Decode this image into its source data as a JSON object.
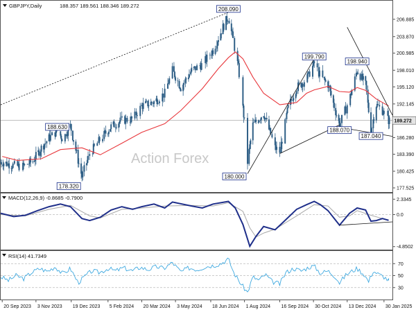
{
  "header": {
    "instrument": "GBPJPY,Daily",
    "ohlc": "188.357 189.561 188.346 189.272"
  },
  "watermark": "Action Forex",
  "colors": {
    "candle": "#2f5f86",
    "ma": "#e8373c",
    "macd_line": "#1f2f8a",
    "macd_signal": "#a8a8a8",
    "rsi_line": "#3fa9e0",
    "trendline": "#111111",
    "annotation_border": "#1a2f8a",
    "current_price_bg": "#e4e4e4",
    "grid": "#bbbbbb"
  },
  "chart_data": [
    {
      "type": "candlestick",
      "name": "price",
      "overlay": "moving average (red)",
      "y_ticks": [
        "206.885",
        "203.870",
        "200.985",
        "198.010",
        "195.120",
        "192.145",
        "189.272",
        "186.280",
        "183.390",
        "180.425",
        "177.525"
      ],
      "ylim": [
        176.8,
        210.0
      ],
      "current_price": "189.272",
      "annotations": [
        {
          "label": "208.090",
          "date": "2024-07-11",
          "value": 208.09
        },
        {
          "label": "199.790",
          "date": "2024-10-31",
          "value": 199.79
        },
        {
          "label": "198.940",
          "date": "2024-12-26",
          "value": 198.94
        },
        {
          "label": "188.630",
          "date": "2023-12-18",
          "value": 188.63
        },
        {
          "label": "188.070",
          "date": "2024-12-03",
          "value": 188.07
        },
        {
          "label": "187.040",
          "date": "2025-01-13",
          "value": 187.04
        },
        {
          "label": "178.320",
          "date": "2024-01-02",
          "value": 178.32
        },
        {
          "label": "180.000",
          "date": "2024-08-05",
          "value": 180.0
        }
      ],
      "close_points": [
        [
          "2023-09-20",
          182.0
        ],
        [
          "2023-10-03",
          181.5
        ],
        [
          "2023-10-16",
          181.2
        ],
        [
          "2023-10-30",
          182.2
        ],
        [
          "2023-11-10",
          184.5
        ],
        [
          "2023-11-20",
          186.2
        ],
        [
          "2023-12-01",
          187.5
        ],
        [
          "2023-12-08",
          186.0
        ],
        [
          "2023-12-18",
          188.3
        ],
        [
          "2023-12-26",
          183.5
        ],
        [
          "2024-01-02",
          179.5
        ],
        [
          "2024-01-12",
          183.5
        ],
        [
          "2024-01-26",
          186.0
        ],
        [
          "2024-02-09",
          188.2
        ],
        [
          "2024-02-23",
          189.3
        ],
        [
          "2024-03-08",
          189.5
        ],
        [
          "2024-03-20",
          191.8
        ],
        [
          "2024-04-05",
          192.5
        ],
        [
          "2024-04-19",
          194.0
        ],
        [
          "2024-04-29",
          198.0
        ],
        [
          "2024-05-10",
          195.0
        ],
        [
          "2024-05-24",
          198.0
        ],
        [
          "2024-06-07",
          199.0
        ],
        [
          "2024-06-21",
          201.5
        ],
        [
          "2024-07-04",
          205.5
        ],
        [
          "2024-07-11",
          207.5
        ],
        [
          "2024-07-24",
          198.5
        ],
        [
          "2024-08-01",
          189.0
        ],
        [
          "2024-08-05",
          182.0
        ],
        [
          "2024-08-12",
          188.5
        ],
        [
          "2024-08-26",
          190.5
        ],
        [
          "2024-09-10",
          184.5
        ],
        [
          "2024-09-16",
          183.8
        ],
        [
          "2024-09-27",
          191.5
        ],
        [
          "2024-10-08",
          195.0
        ],
        [
          "2024-10-21",
          196.5
        ],
        [
          "2024-10-31",
          199.2
        ],
        [
          "2024-11-08",
          197.0
        ],
        [
          "2024-11-18",
          195.5
        ],
        [
          "2024-12-03",
          188.5
        ],
        [
          "2024-12-16",
          193.0
        ],
        [
          "2024-12-26",
          198.0
        ],
        [
          "2025-01-06",
          195.5
        ],
        [
          "2025-01-13",
          187.5
        ],
        [
          "2025-01-20",
          192.0
        ],
        [
          "2025-01-28",
          191.0
        ],
        [
          "2025-02-05",
          189.272
        ]
      ],
      "ma_points": [
        [
          "2023-09-20",
          183.0
        ],
        [
          "2023-10-10",
          182.3
        ],
        [
          "2023-11-10",
          182.6
        ],
        [
          "2023-12-05",
          184.2
        ],
        [
          "2024-01-02",
          184.5
        ],
        [
          "2024-01-26",
          183.3
        ],
        [
          "2024-02-23",
          185.3
        ],
        [
          "2024-03-20",
          187.2
        ],
        [
          "2024-04-19",
          188.7
        ],
        [
          "2024-05-10",
          191.0
        ],
        [
          "2024-06-07",
          194.8
        ],
        [
          "2024-06-28",
          198.3
        ],
        [
          "2024-07-11",
          200.2
        ],
        [
          "2024-07-20",
          201.2
        ],
        [
          "2024-07-30",
          200.0
        ],
        [
          "2024-08-12",
          196.8
        ],
        [
          "2024-08-26",
          194.0
        ],
        [
          "2024-09-16",
          192.0
        ],
        [
          "2024-10-08",
          192.4
        ],
        [
          "2024-10-21",
          194.0
        ],
        [
          "2024-10-31",
          194.6
        ],
        [
          "2024-11-18",
          195.2
        ],
        [
          "2024-12-03",
          194.3
        ],
        [
          "2024-12-16",
          194.2
        ],
        [
          "2024-12-26",
          195.0
        ],
        [
          "2025-01-06",
          194.5
        ],
        [
          "2025-01-20",
          193.0
        ],
        [
          "2025-02-05",
          191.8
        ]
      ],
      "trendlines": [
        {
          "from": [
            "2023-09-18",
            192.0
          ],
          "to": [
            "2024-07-11",
            208.09
          ],
          "style": "dotted"
        },
        {
          "from": [
            "2024-08-05",
            180.0
          ],
          "to": [
            "2024-10-31",
            200.0
          ],
          "style": "solid"
        },
        {
          "from": [
            "2024-09-16",
            183.5
          ],
          "to": [
            "2024-12-03",
            188.5
          ],
          "style": "solid"
        },
        {
          "from": [
            "2024-12-13",
            205.5
          ],
          "to": [
            "2025-02-10",
            190.2
          ],
          "style": "solid"
        },
        {
          "from": [
            "2024-12-03",
            188.07
          ],
          "to": [
            "2025-02-10",
            186.5
          ],
          "style": "solid"
        }
      ]
    },
    {
      "type": "line",
      "name": "MACD(12,26,9) -0.8685 -0.7900",
      "y_ticks": [
        "2.3345",
        "0.0",
        "-4.8502"
      ],
      "ylim": [
        -5.3,
        3.1
      ],
      "zero_line": 0.0,
      "macd_points": [
        [
          "2023-09-18",
          0.2
        ],
        [
          "2023-10-05",
          -0.3
        ],
        [
          "2023-10-20",
          -0.1
        ],
        [
          "2023-11-05",
          0.6
        ],
        [
          "2023-11-20",
          1.2
        ],
        [
          "2023-12-05",
          1.6
        ],
        [
          "2023-12-18",
          1.2
        ],
        [
          "2024-01-02",
          -0.6
        ],
        [
          "2024-01-12",
          -0.9
        ],
        [
          "2024-01-26",
          -0.4
        ],
        [
          "2024-02-09",
          0.7
        ],
        [
          "2024-02-23",
          1.2
        ],
        [
          "2024-03-08",
          0.8
        ],
        [
          "2024-03-20",
          1.2
        ],
        [
          "2024-04-05",
          1.6
        ],
        [
          "2024-04-19",
          1.0
        ],
        [
          "2024-04-29",
          1.9
        ],
        [
          "2024-05-24",
          1.3
        ],
        [
          "2024-06-07",
          1.0
        ],
        [
          "2024-06-21",
          1.6
        ],
        [
          "2024-07-11",
          2.0
        ],
        [
          "2024-07-20",
          1.0
        ],
        [
          "2024-07-30",
          -1.5
        ],
        [
          "2024-08-08",
          -4.8
        ],
        [
          "2024-08-16",
          -3.3
        ],
        [
          "2024-08-26",
          -1.8
        ],
        [
          "2024-09-10",
          -2.3
        ],
        [
          "2024-09-20",
          -1.2
        ],
        [
          "2024-10-08",
          0.8
        ],
        [
          "2024-10-21",
          1.5
        ],
        [
          "2024-10-31",
          2.0
        ],
        [
          "2024-11-08",
          1.5
        ],
        [
          "2024-11-18",
          0.6
        ],
        [
          "2024-12-03",
          -1.6
        ],
        [
          "2024-12-16",
          0.2
        ],
        [
          "2024-12-26",
          1.0
        ],
        [
          "2025-01-06",
          0.7
        ],
        [
          "2025-01-13",
          -1.0
        ],
        [
          "2025-01-20",
          -0.9
        ],
        [
          "2025-01-28",
          -0.6
        ],
        [
          "2025-02-05",
          -0.87
        ]
      ],
      "signal_points": [
        [
          "2023-09-18",
          0.0
        ],
        [
          "2023-10-20",
          -0.2
        ],
        [
          "2023-11-20",
          0.8
        ],
        [
          "2023-12-18",
          1.4
        ],
        [
          "2024-01-12",
          -0.2
        ],
        [
          "2024-01-26",
          -0.5
        ],
        [
          "2024-02-23",
          0.8
        ],
        [
          "2024-03-20",
          1.0
        ],
        [
          "2024-04-19",
          1.3
        ],
        [
          "2024-05-24",
          1.4
        ],
        [
          "2024-06-21",
          1.3
        ],
        [
          "2024-07-11",
          1.8
        ],
        [
          "2024-07-30",
          0.5
        ],
        [
          "2024-08-08",
          -2.0
        ],
        [
          "2024-08-16",
          -3.4
        ],
        [
          "2024-08-26",
          -2.8
        ],
        [
          "2024-09-10",
          -2.2
        ],
        [
          "2024-10-08",
          -0.2
        ],
        [
          "2024-10-31",
          1.5
        ],
        [
          "2024-11-18",
          1.3
        ],
        [
          "2024-12-03",
          -0.4
        ],
        [
          "2024-12-16",
          -0.2
        ],
        [
          "2024-12-26",
          0.6
        ],
        [
          "2025-01-13",
          -0.1
        ],
        [
          "2025-01-28",
          -0.6
        ],
        [
          "2025-02-05",
          -0.79
        ]
      ],
      "trendline": {
        "from": [
          "2024-12-03",
          -1.6
        ],
        "to": [
          "2025-02-10",
          -1.1
        ]
      }
    },
    {
      "type": "line",
      "name": "RSI(14) 41.7349",
      "y_ticks": [
        "70",
        "50",
        "30"
      ],
      "ylim": [
        10,
        90
      ],
      "levels": [
        70,
        50,
        30
      ],
      "rsi_points": [
        [
          "2023-09-18",
          48
        ],
        [
          "2023-09-28",
          42
        ],
        [
          "2023-10-08",
          50
        ],
        [
          "2023-10-18",
          45
        ],
        [
          "2023-10-28",
          55
        ],
        [
          "2023-11-08",
          62
        ],
        [
          "2023-11-18",
          57
        ],
        [
          "2023-11-28",
          65
        ],
        [
          "2023-12-08",
          53
        ],
        [
          "2023-12-18",
          62
        ],
        [
          "2023-12-28",
          38
        ],
        [
          "2024-01-05",
          48
        ],
        [
          "2024-01-15",
          58
        ],
        [
          "2024-01-25",
          55
        ],
        [
          "2024-02-05",
          62
        ],
        [
          "2024-02-15",
          58
        ],
        [
          "2024-02-25",
          63
        ],
        [
          "2024-03-08",
          58
        ],
        [
          "2024-03-18",
          64
        ],
        [
          "2024-03-28",
          60
        ],
        [
          "2024-04-08",
          65
        ],
        [
          "2024-04-18",
          62
        ],
        [
          "2024-04-29",
          72
        ],
        [
          "2024-05-10",
          56
        ],
        [
          "2024-05-20",
          63
        ],
        [
          "2024-06-01",
          60
        ],
        [
          "2024-06-11",
          65
        ],
        [
          "2024-06-21",
          67
        ],
        [
          "2024-07-01",
          70
        ],
        [
          "2024-07-11",
          78
        ],
        [
          "2024-07-18",
          55
        ],
        [
          "2024-07-28",
          35
        ],
        [
          "2024-08-05",
          22
        ],
        [
          "2024-08-12",
          48
        ],
        [
          "2024-08-20",
          42
        ],
        [
          "2024-08-28",
          52
        ],
        [
          "2024-09-06",
          40
        ],
        [
          "2024-09-16",
          36
        ],
        [
          "2024-09-24",
          55
        ],
        [
          "2024-10-04",
          62
        ],
        [
          "2024-10-14",
          58
        ],
        [
          "2024-10-24",
          64
        ],
        [
          "2024-10-31",
          66
        ],
        [
          "2024-11-08",
          54
        ],
        [
          "2024-11-18",
          58
        ],
        [
          "2024-11-28",
          48
        ],
        [
          "2024-12-03",
          38
        ],
        [
          "2024-12-12",
          52
        ],
        [
          "2024-12-20",
          58
        ],
        [
          "2024-12-26",
          62
        ],
        [
          "2025-01-04",
          52
        ],
        [
          "2025-01-10",
          40
        ],
        [
          "2025-01-16",
          58
        ],
        [
          "2025-01-23",
          52
        ],
        [
          "2025-01-30",
          48
        ],
        [
          "2025-02-05",
          41.73
        ]
      ]
    }
  ],
  "x_axis": {
    "labels": [
      "20 Sep 2023",
      "3 Nov 2023",
      "19 Dec 2023",
      "5 Feb 2024",
      "20 Mar 2024",
      "3 May 2024",
      "18 Jun 2024",
      "1 Aug 2024",
      "16 Sep 2024",
      "30 Oct 2024",
      "13 Dec 2024",
      "30 Jan 2025"
    ],
    "dates": [
      "2023-09-20",
      "2023-11-03",
      "2023-12-19",
      "2024-02-05",
      "2024-03-20",
      "2024-05-03",
      "2024-06-18",
      "2024-08-01",
      "2024-09-16",
      "2024-10-30",
      "2024-12-13",
      "2025-01-30"
    ]
  }
}
